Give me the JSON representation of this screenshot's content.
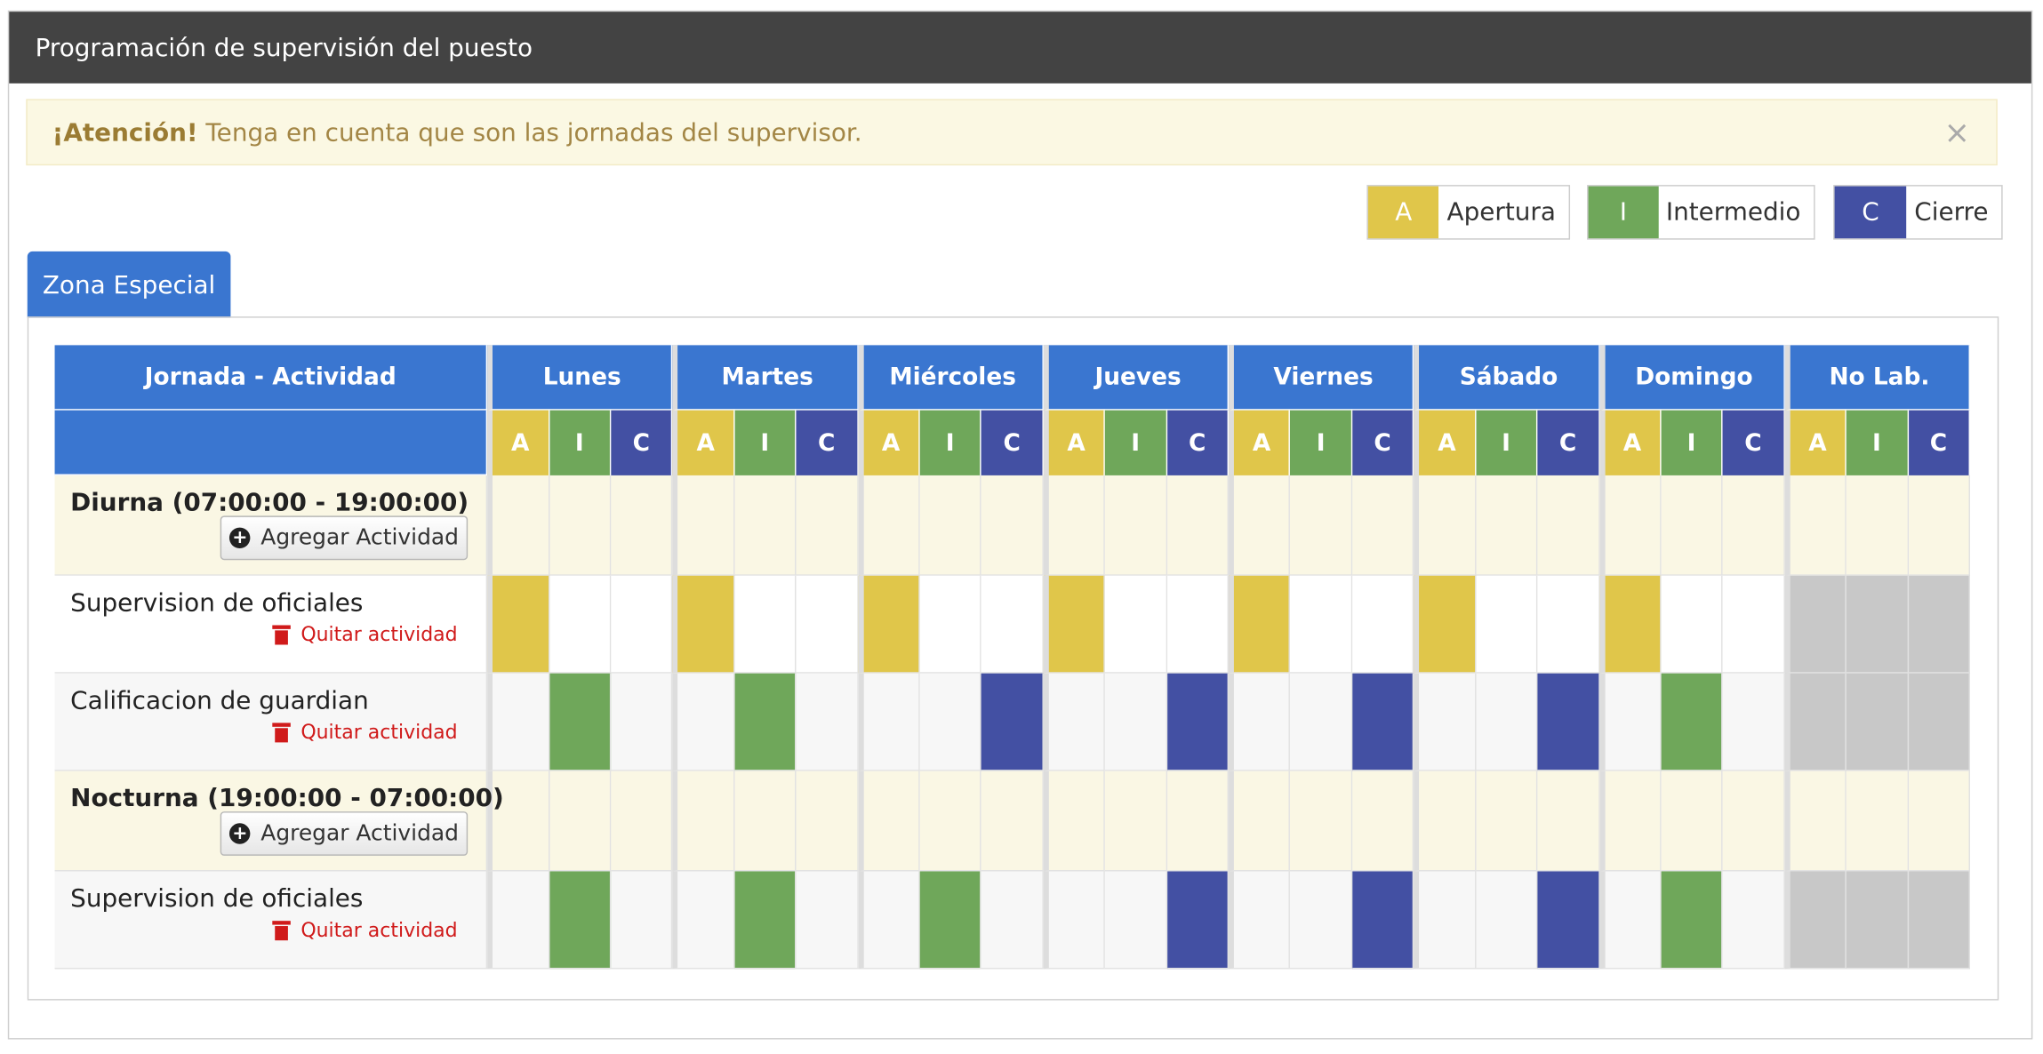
{
  "panel": {
    "title": "Programación de supervisión del puesto"
  },
  "alert": {
    "strong": "¡Atención!",
    "text": "Tenga en cuenta que son las jornadas del supervisor.",
    "close": "×"
  },
  "legend": [
    {
      "code": "A",
      "label": "Apertura",
      "color": "#e0c64a"
    },
    {
      "code": "I",
      "label": "Intermedio",
      "color": "#6fa75a"
    },
    {
      "code": "C",
      "label": "Cierre",
      "color": "#4350a3"
    }
  ],
  "tab": {
    "label": "Zona Especial"
  },
  "table": {
    "first_header": "Jornada - Actividad",
    "days": [
      "Lunes",
      "Martes",
      "Miércoles",
      "Jueves",
      "Viernes",
      "Sábado",
      "Domingo",
      "No Lab."
    ],
    "sub": [
      "A",
      "I",
      "C"
    ],
    "add_label": "Agregar Actividad",
    "remove_label": "Quitar actividad",
    "rows": [
      {
        "type": "shift",
        "name": "Diurna (07:00:00 - 19:00:00)"
      },
      {
        "type": "activity",
        "name": "Supervision de oficiales",
        "alt": false,
        "values": [
          "A",
          "A",
          "A",
          "A",
          "A",
          "A",
          "A",
          "-"
        ]
      },
      {
        "type": "activity",
        "name": "Calificacion de guardian",
        "alt": true,
        "values": [
          "I",
          "I",
          "C",
          "C",
          "C",
          "C",
          "I",
          "-"
        ]
      },
      {
        "type": "shift",
        "name": "Nocturna (19:00:00 - 07:00:00)"
      },
      {
        "type": "activity",
        "name": "Supervision de oficiales",
        "alt": true,
        "values": [
          "I",
          "I",
          "I",
          "C",
          "C",
          "C",
          "I",
          "-"
        ]
      }
    ]
  }
}
